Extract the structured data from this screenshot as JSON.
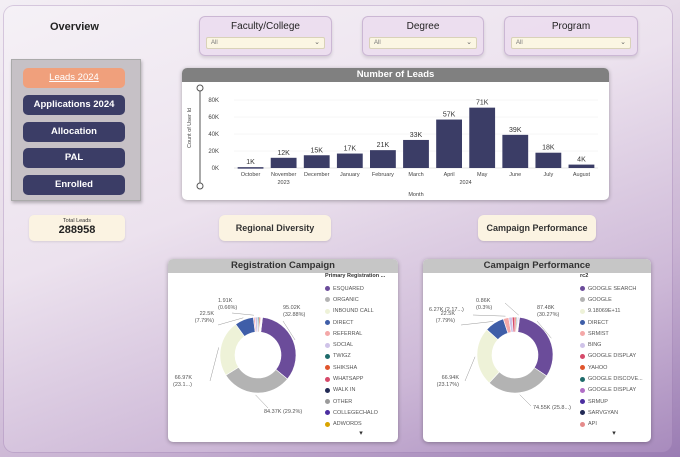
{
  "page": {
    "title": "Overview"
  },
  "slicers": [
    {
      "label": "Faculty/College",
      "value": "All"
    },
    {
      "label": "Degree",
      "value": "All"
    },
    {
      "label": "Program",
      "value": "All"
    }
  ],
  "nav": {
    "items": [
      {
        "label": "Leads 2024",
        "active": true
      },
      {
        "label": "Applications 2024",
        "active": false
      },
      {
        "label": "Allocation",
        "active": false
      },
      {
        "label": "PAL",
        "active": false
      },
      {
        "label": "Enrolled",
        "active": false
      }
    ]
  },
  "total_leads": {
    "label": "Total Leads",
    "value": "288958"
  },
  "buttons": {
    "regional": "Regional Diversity",
    "campaign": "Campaign Performance"
  },
  "colors": {
    "bar": "#3b3d66",
    "accent": "#f0a07c",
    "navy": "#3b3d66"
  },
  "chart_data": [
    {
      "type": "bar",
      "title": "Number of Leads",
      "ylabel": "Count of User Id",
      "xlabel": "Month",
      "categories": [
        "October",
        "November",
        "December",
        "January",
        "February",
        "March",
        "April",
        "May",
        "June",
        "July",
        "August"
      ],
      "year_groups": [
        {
          "label": "2023",
          "from": 0,
          "to": 2
        },
        {
          "label": "2024",
          "from": 3,
          "to": 10
        }
      ],
      "values": [
        1000,
        12000,
        15000,
        17000,
        21000,
        33000,
        57000,
        71000,
        39000,
        18000,
        4000
      ],
      "data_labels": [
        "1K",
        "12K",
        "15K",
        "17K",
        "21K",
        "33K",
        "57K",
        "71K",
        "39K",
        "18K",
        "4K"
      ],
      "yticks": [
        "0K",
        "20K",
        "40K",
        "60K",
        "80K"
      ],
      "ylim": [
        0,
        80000
      ]
    },
    {
      "type": "pie",
      "title": "Registration Campaign",
      "legend_title": "Primary Registration ...",
      "slices": [
        {
          "name": "ESQUARED",
          "value": 95020,
          "label": "95.02K\n(32.88%)",
          "color": "#6b4c9a"
        },
        {
          "name": "ORGANIC",
          "value": 84370,
          "label": "84.37K (29.2%)",
          "color": "#b3b3b3"
        },
        {
          "name": "INBOUND CALL",
          "value": 66970,
          "label": "66.97K\n(23.1...)",
          "color": "#eef2d8"
        },
        {
          "name": "DIRECT",
          "value": 22500,
          "label": "22.5K\n(7.79%)",
          "color": "#3f5ea8"
        },
        {
          "name": "REFERRAL",
          "value": 1910,
          "label": "1.91K\n(0.66%)",
          "color": "#f4a8a8"
        },
        {
          "name": "SOCIAL",
          "value": 3000,
          "label": "",
          "color": "#cfc3e8"
        },
        {
          "name": "TWIGZ",
          "value": 1500,
          "label": "",
          "color": "#1f6b6b"
        },
        {
          "name": "SHIKSHA",
          "value": 1500,
          "label": "",
          "color": "#e0552c"
        },
        {
          "name": "WHATSAPP",
          "value": 1000,
          "label": "",
          "color": "#d64a6a"
        },
        {
          "name": "WALK IN",
          "value": 700,
          "label": "",
          "color": "#222a55"
        },
        {
          "name": "OTHER",
          "value": 500,
          "label": "",
          "color": "#9a9a9a"
        },
        {
          "name": "COLLEGECHALO",
          "value": 400,
          "label": "",
          "color": "#4b2ea0"
        },
        {
          "name": "ADWORDS",
          "value": 300,
          "label": "",
          "color": "#d9a400"
        }
      ]
    },
    {
      "type": "pie",
      "title": "Campaign Performance",
      "legend_title": "rc2",
      "slices": [
        {
          "name": "GOOGLE SEARCH",
          "value": 87480,
          "label": "87.48K\n(30.27%)",
          "color": "#6b4c9a"
        },
        {
          "name": "GOOGLE",
          "value": 74550,
          "label": "74.55K (25.8...)",
          "color": "#b3b3b3"
        },
        {
          "name": "9.18069E+11",
          "value": 66940,
          "label": "66.94K\n(23.17%)",
          "color": "#eef2d8"
        },
        {
          "name": "DIRECT",
          "value": 22500,
          "label": "22.5K\n(7.79%)",
          "color": "#3f5ea8"
        },
        {
          "name": "SRMIST",
          "value": 6270,
          "label": "6.27K (2.17...)",
          "color": "#f4a8a8"
        },
        {
          "name": "BING",
          "value": 4000,
          "label": "",
          "color": "#cfc3e8"
        },
        {
          "name": "GOOGLE DISPLAY",
          "value": 3000,
          "label": "",
          "color": "#d64a6a"
        },
        {
          "name": "YAHOO",
          "value": 1500,
          "label": "",
          "color": "#e0552c"
        },
        {
          "name": "GOOGLE DISCOVE...",
          "value": 1200,
          "label": "",
          "color": "#1f6b6b"
        },
        {
          "name": "GOOGLE DISPLAY",
          "value": 1000,
          "label": "",
          "color": "#b16ec6"
        },
        {
          "name": "SRMUP",
          "value": 860,
          "label": "0.86K\n(0.3%)",
          "color": "#4b2ea0"
        },
        {
          "name": "SARVGYAN",
          "value": 500,
          "label": "",
          "color": "#222a55"
        },
        {
          "name": "API",
          "value": 300,
          "label": "",
          "color": "#e58b8b"
        }
      ]
    }
  ]
}
